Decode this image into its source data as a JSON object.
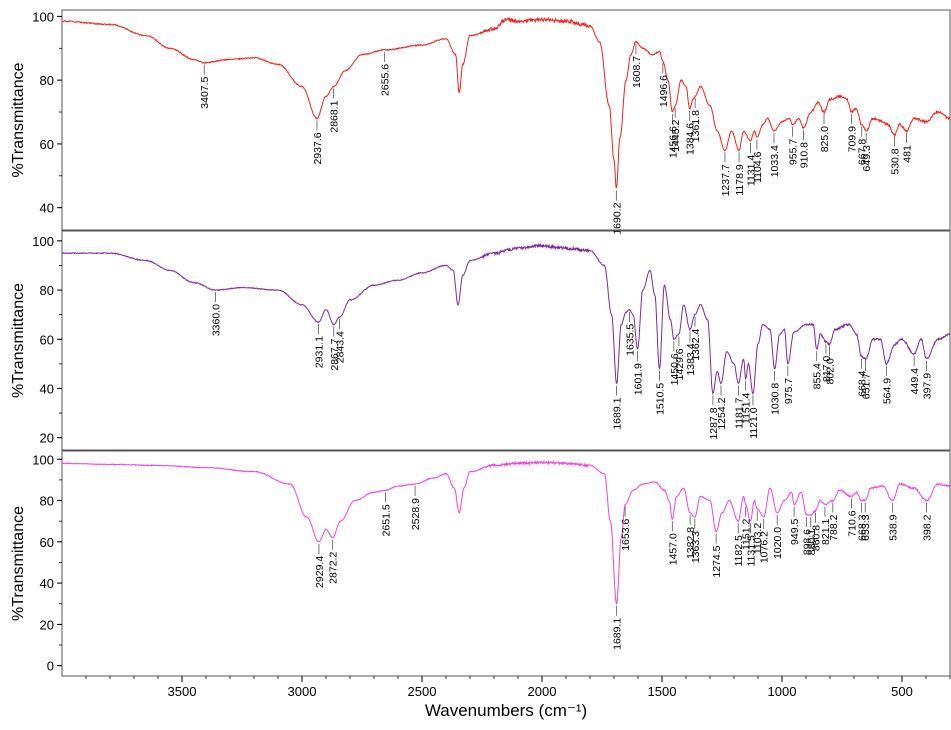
{
  "xlabel": "Wavenumbers (cm⁻¹)",
  "chart_data": [
    {
      "type": "line",
      "color": "#ee2222",
      "xlabel": "Wavenumbers (cm⁻¹)",
      "ylabel": "%Transmittance",
      "xlim": [
        4000,
        300
      ],
      "ylim": [
        33,
        102
      ],
      "x_ticks": [
        3500,
        3000,
        2500,
        2000,
        1500,
        1000,
        500
      ],
      "y_ticks": [
        40,
        60,
        80,
        100
      ],
      "grid": false,
      "points": [
        [
          4000,
          98.5
        ],
        [
          3800,
          97.5
        ],
        [
          3650,
          94
        ],
        [
          3550,
          90
        ],
        [
          3450,
          86.5
        ],
        [
          3407.5,
          85.5
        ],
        [
          3300,
          86.5
        ],
        [
          3200,
          87
        ],
        [
          3100,
          85
        ],
        [
          3000,
          78
        ],
        [
          2937.6,
          68
        ],
        [
          2900,
          75
        ],
        [
          2868.1,
          78
        ],
        [
          2820,
          83
        ],
        [
          2750,
          88
        ],
        [
          2655.6,
          89.5
        ],
        [
          2500,
          91
        ],
        [
          2400,
          93
        ],
        [
          2360,
          88
        ],
        [
          2345,
          76
        ],
        [
          2330,
          85
        ],
        [
          2300,
          94
        ],
        [
          2200,
          96
        ],
        [
          2150,
          99
        ],
        [
          2100,
          98.5
        ],
        [
          2000,
          99
        ],
        [
          1900,
          98.5
        ],
        [
          1800,
          97
        ],
        [
          1760,
          92
        ],
        [
          1720,
          72
        ],
        [
          1700,
          55
        ],
        [
          1690.2,
          46
        ],
        [
          1675,
          62
        ],
        [
          1650,
          80
        ],
        [
          1630,
          88
        ],
        [
          1608.7,
          92
        ],
        [
          1580,
          90
        ],
        [
          1540,
          88
        ],
        [
          1510,
          89
        ],
        [
          1496.6,
          86
        ],
        [
          1475,
          80
        ],
        [
          1456.6,
          70
        ],
        [
          1445.2,
          72
        ],
        [
          1420,
          80
        ],
        [
          1400,
          78
        ],
        [
          1384.6,
          71
        ],
        [
          1370,
          74
        ],
        [
          1361.8,
          75
        ],
        [
          1340,
          78
        ],
        [
          1300,
          72
        ],
        [
          1270,
          64
        ],
        [
          1237.7,
          58
        ],
        [
          1210,
          64
        ],
        [
          1178.9,
          58
        ],
        [
          1160,
          64
        ],
        [
          1131.4,
          61
        ],
        [
          1115,
          64
        ],
        [
          1104.6,
          62
        ],
        [
          1080,
          66
        ],
        [
          1060,
          68
        ],
        [
          1033.4,
          64
        ],
        [
          1000,
          67
        ],
        [
          970,
          68
        ],
        [
          955.7,
          66
        ],
        [
          930,
          68
        ],
        [
          910.8,
          65
        ],
        [
          880,
          70
        ],
        [
          850,
          73
        ],
        [
          825.0,
          70
        ],
        [
          800,
          74
        ],
        [
          760,
          75
        ],
        [
          730,
          74
        ],
        [
          709.9,
          70
        ],
        [
          690,
          71
        ],
        [
          667.8,
          66
        ],
        [
          649.3,
          64
        ],
        [
          620,
          68
        ],
        [
          580,
          67
        ],
        [
          560,
          66
        ],
        [
          530.8,
          63
        ],
        [
          510,
          66
        ],
        [
          481,
          64
        ],
        [
          450,
          68
        ],
        [
          400,
          67
        ],
        [
          350,
          70
        ],
        [
          300,
          68
        ]
      ],
      "annotations": [
        3407.5,
        2937.6,
        2868.1,
        2655.6,
        1690.2,
        1608.7,
        1496.6,
        1456.6,
        1445.2,
        1384.6,
        1361.8,
        1237.7,
        1178.9,
        1131.4,
        1104.6,
        1033.4,
        955.7,
        910.8,
        825.0,
        709.9,
        667.8,
        649.3,
        530.8,
        481
      ]
    },
    {
      "type": "line",
      "color": "#7d2a9b",
      "xlabel": "Wavenumbers (cm⁻¹)",
      "ylabel": "%Transmittance",
      "xlim": [
        4000,
        300
      ],
      "ylim": [
        15,
        104
      ],
      "x_ticks": [
        3500,
        3000,
        2500,
        2000,
        1500,
        1000,
        500
      ],
      "y_ticks": [
        20,
        40,
        60,
        80,
        100
      ],
      "grid": false,
      "points": [
        [
          4000,
          95
        ],
        [
          3800,
          95
        ],
        [
          3650,
          92
        ],
        [
          3550,
          88
        ],
        [
          3450,
          83
        ],
        [
          3360.0,
          80
        ],
        [
          3250,
          81
        ],
        [
          3100,
          80
        ],
        [
          3000,
          74
        ],
        [
          2931.1,
          67
        ],
        [
          2900,
          72
        ],
        [
          2867.7,
          66
        ],
        [
          2843.4,
          69
        ],
        [
          2800,
          76
        ],
        [
          2700,
          82
        ],
        [
          2600,
          84
        ],
        [
          2500,
          87
        ],
        [
          2400,
          90
        ],
        [
          2370,
          88
        ],
        [
          2350,
          74
        ],
        [
          2330,
          86
        ],
        [
          2300,
          92
        ],
        [
          2200,
          95
        ],
        [
          2100,
          97
        ],
        [
          2000,
          98
        ],
        [
          1900,
          97
        ],
        [
          1800,
          96
        ],
        [
          1740,
          90
        ],
        [
          1710,
          70
        ],
        [
          1689.1,
          42
        ],
        [
          1670,
          66
        ],
        [
          1650,
          71
        ],
        [
          1635.5,
          72
        ],
        [
          1620,
          70
        ],
        [
          1601.9,
          56
        ],
        [
          1580,
          80
        ],
        [
          1550,
          88
        ],
        [
          1530,
          78
        ],
        [
          1510.5,
          48
        ],
        [
          1490,
          82
        ],
        [
          1465,
          68
        ],
        [
          1450.6,
          60
        ],
        [
          1429.6,
          62
        ],
        [
          1410,
          74
        ],
        [
          1383.4,
          64
        ],
        [
          1362.4,
          70
        ],
        [
          1340,
          74
        ],
        [
          1310,
          68
        ],
        [
          1287.8,
          38
        ],
        [
          1270,
          47
        ],
        [
          1254.2,
          42
        ],
        [
          1230,
          55
        ],
        [
          1200,
          50
        ],
        [
          1181.7,
          42
        ],
        [
          1160,
          52
        ],
        [
          1151.4,
          44
        ],
        [
          1140,
          50
        ],
        [
          1121.0,
          38
        ],
        [
          1100,
          58
        ],
        [
          1080,
          66
        ],
        [
          1050,
          64
        ],
        [
          1030.8,
          48
        ],
        [
          1010,
          62
        ],
        [
          990,
          64
        ],
        [
          975.7,
          50
        ],
        [
          950,
          63
        ],
        [
          900,
          66
        ],
        [
          870,
          66
        ],
        [
          855.4,
          56
        ],
        [
          840,
          62
        ],
        [
          817.0,
          59
        ],
        [
          802.0,
          58
        ],
        [
          780,
          64
        ],
        [
          720,
          66
        ],
        [
          690,
          62
        ],
        [
          668.4,
          53
        ],
        [
          651.7,
          52
        ],
        [
          620,
          60
        ],
        [
          590,
          60
        ],
        [
          564.9,
          50
        ],
        [
          530,
          58
        ],
        [
          500,
          60
        ],
        [
          449.4,
          54
        ],
        [
          420,
          60
        ],
        [
          397.9,
          52
        ],
        [
          350,
          60
        ],
        [
          300,
          62
        ]
      ],
      "annotations": [
        3360.0,
        2931.1,
        2867.7,
        2843.4,
        1689.1,
        1635.5,
        1601.9,
        1510.5,
        1450.6,
        1429.6,
        1383.4,
        1362.4,
        1287.8,
        1254.2,
        1181.7,
        1151.4,
        1121.0,
        1030.8,
        975.7,
        855.4,
        817.0,
        802.0,
        668.4,
        651.7,
        564.9,
        449.4,
        397.9
      ]
    },
    {
      "type": "line",
      "color": "#ee44dd",
      "xlabel": "Wavenumbers (cm⁻¹)",
      "ylabel": "%Transmittance",
      "xlim": [
        4000,
        300
      ],
      "ylim": [
        -5,
        104
      ],
      "x_ticks": [
        3500,
        3000,
        2500,
        2000,
        1500,
        1000,
        500
      ],
      "y_ticks": [
        0,
        20,
        40,
        60,
        80,
        100
      ],
      "grid": false,
      "points": [
        [
          4000,
          98
        ],
        [
          3800,
          97.5
        ],
        [
          3600,
          97
        ],
        [
          3400,
          96
        ],
        [
          3200,
          94
        ],
        [
          3050,
          88
        ],
        [
          2980,
          72
        ],
        [
          2929.4,
          60
        ],
        [
          2900,
          66
        ],
        [
          2872.2,
          62
        ],
        [
          2840,
          70
        ],
        [
          2780,
          80
        ],
        [
          2700,
          84
        ],
        [
          2651.5,
          85
        ],
        [
          2600,
          87
        ],
        [
          2528.9,
          88
        ],
        [
          2450,
          91
        ],
        [
          2400,
          93
        ],
        [
          2365,
          86
        ],
        [
          2345,
          74
        ],
        [
          2325,
          86
        ],
        [
          2300,
          94
        ],
        [
          2200,
          97
        ],
        [
          2100,
          98
        ],
        [
          2000,
          98.5
        ],
        [
          1900,
          98
        ],
        [
          1800,
          97
        ],
        [
          1740,
          93
        ],
        [
          1715,
          70
        ],
        [
          1689.1,
          30
        ],
        [
          1670,
          62
        ],
        [
          1653.6,
          78
        ],
        [
          1620,
          85
        ],
        [
          1580,
          88
        ],
        [
          1530,
          89
        ],
        [
          1490,
          85
        ],
        [
          1470,
          80
        ],
        [
          1457.0,
          71
        ],
        [
          1440,
          82
        ],
        [
          1410,
          86
        ],
        [
          1382.8,
          74
        ],
        [
          1363.3,
          72
        ],
        [
          1340,
          82
        ],
        [
          1300,
          80
        ],
        [
          1274.5,
          65
        ],
        [
          1250,
          74
        ],
        [
          1220,
          80
        ],
        [
          1182.5,
          70
        ],
        [
          1160,
          82
        ],
        [
          1151.2,
          78
        ],
        [
          1131.5,
          70
        ],
        [
          1115,
          80
        ],
        [
          1103.2,
          76
        ],
        [
          1076.2,
          72
        ],
        [
          1050,
          86
        ],
        [
          1020.0,
          74
        ],
        [
          990,
          80
        ],
        [
          960,
          84
        ],
        [
          949.5,
          78
        ],
        [
          920,
          84
        ],
        [
          898.6,
          73
        ],
        [
          880.1,
          73
        ],
        [
          860.8,
          75
        ],
        [
          840,
          80
        ],
        [
          821.1,
          78
        ],
        [
          788.2,
          80
        ],
        [
          760,
          85
        ],
        [
          710.6,
          82
        ],
        [
          690,
          84
        ],
        [
          668.3,
          80
        ],
        [
          653.3,
          80
        ],
        [
          630,
          86
        ],
        [
          580,
          87
        ],
        [
          538.9,
          80
        ],
        [
          510,
          88
        ],
        [
          450,
          86
        ],
        [
          398.2,
          80
        ],
        [
          350,
          88
        ],
        [
          300,
          87
        ]
      ],
      "annotations": [
        2929.4,
        2872.2,
        2651.5,
        2528.9,
        1689.1,
        1653.6,
        1457.0,
        1382.8,
        1363.3,
        1274.5,
        1182.5,
        1151.2,
        1131.5,
        1103.2,
        1076.2,
        1020.0,
        949.5,
        898.6,
        880.1,
        860.8,
        821.1,
        788.2,
        710.6,
        668.3,
        653.3,
        538.9,
        398.2
      ]
    }
  ]
}
